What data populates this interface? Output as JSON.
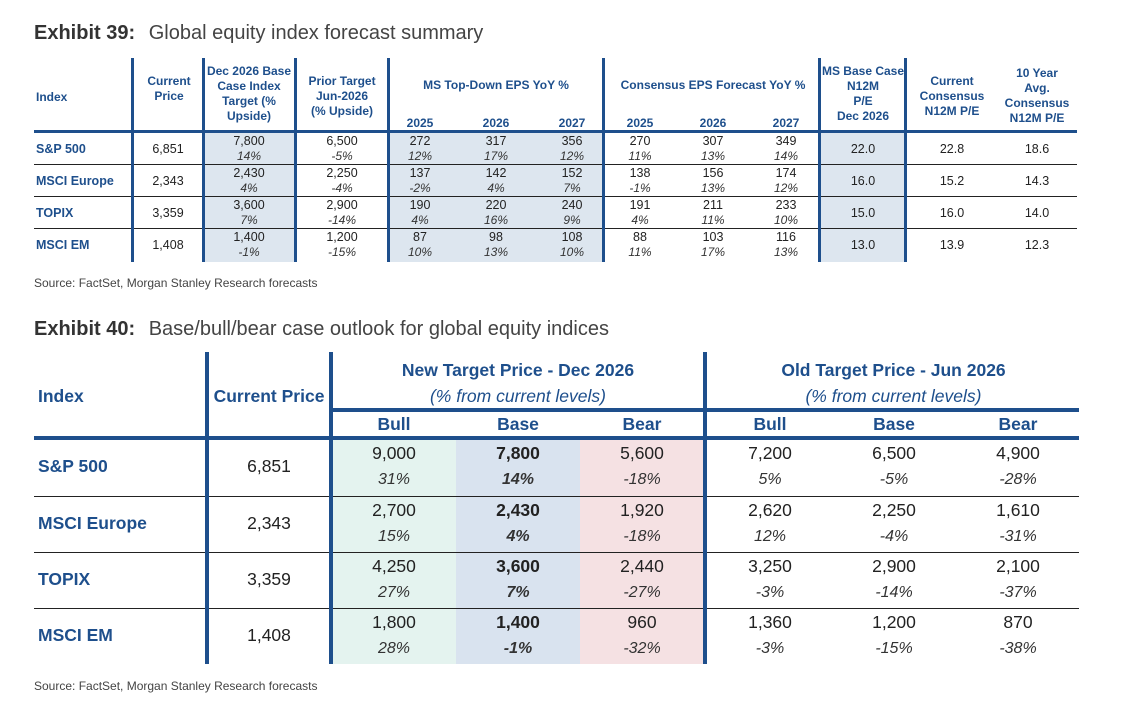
{
  "exhibit39": {
    "label": "Exhibit 39:",
    "title": "Global equity index forecast summary",
    "headers": {
      "index": "Index",
      "current_price": [
        "Current",
        "Price"
      ],
      "dec2026_target": [
        "Dec 2026 Base",
        "Case Index",
        "Target  (%",
        "Upside)"
      ],
      "prior_target": [
        "Prior Target",
        "Jun-2026",
        "(% Upside)"
      ],
      "ms_topdown": "MS Top-Down EPS YoY %",
      "consensus_eps": "Consensus EPS Forecast YoY %",
      "years": [
        "2025",
        "2026",
        "2027"
      ],
      "ms_base_pe": [
        "MS Base Case",
        "N12M",
        "P/E",
        "Dec 2026"
      ],
      "current_consensus_pe": [
        "Current",
        "Consensus",
        "N12M P/E"
      ],
      "ten_year_avg_pe": [
        "10 Year",
        "Avg.",
        "Consensus",
        "N12M P/E"
      ]
    },
    "rows": [
      {
        "index": "S&P 500",
        "current_price": "6,851",
        "target": "7,800",
        "target_pct": "14%",
        "prior": "6,500",
        "prior_pct": "-5%",
        "ms_eps": [
          "272",
          "317",
          "356"
        ],
        "ms_eps_pct": [
          "12%",
          "17%",
          "12%"
        ],
        "cons_eps": [
          "270",
          "307",
          "349"
        ],
        "cons_eps_pct": [
          "11%",
          "13%",
          "14%"
        ],
        "ms_pe": "22.0",
        "cur_pe": "22.8",
        "avg_pe": "18.6"
      },
      {
        "index": "MSCI Europe",
        "current_price": "2,343",
        "target": "2,430",
        "target_pct": "4%",
        "prior": "2,250",
        "prior_pct": "-4%",
        "ms_eps": [
          "137",
          "142",
          "152"
        ],
        "ms_eps_pct": [
          "-2%",
          "4%",
          "7%"
        ],
        "cons_eps": [
          "138",
          "156",
          "174"
        ],
        "cons_eps_pct": [
          "-1%",
          "13%",
          "12%"
        ],
        "ms_pe": "16.0",
        "cur_pe": "15.2",
        "avg_pe": "14.3"
      },
      {
        "index": "TOPIX",
        "current_price": "3,359",
        "target": "3,600",
        "target_pct": "7%",
        "prior": "2,900",
        "prior_pct": "-14%",
        "ms_eps": [
          "190",
          "220",
          "240"
        ],
        "ms_eps_pct": [
          "4%",
          "16%",
          "9%"
        ],
        "cons_eps": [
          "191",
          "211",
          "233"
        ],
        "cons_eps_pct": [
          "4%",
          "11%",
          "10%"
        ],
        "ms_pe": "15.0",
        "cur_pe": "16.0",
        "avg_pe": "14.0"
      },
      {
        "index": "MSCI EM",
        "current_price": "1,408",
        "target": "1,400",
        "target_pct": "-1%",
        "prior": "1,200",
        "prior_pct": "-15%",
        "ms_eps": [
          "87",
          "98",
          "108"
        ],
        "ms_eps_pct": [
          "10%",
          "13%",
          "10%"
        ],
        "cons_eps": [
          "88",
          "103",
          "116"
        ],
        "cons_eps_pct": [
          "11%",
          "17%",
          "13%"
        ],
        "ms_pe": "13.0",
        "cur_pe": "13.9",
        "avg_pe": "12.3"
      }
    ],
    "source": "Source: FactSet, Morgan Stanley Research forecasts"
  },
  "exhibit40": {
    "label": "Exhibit 40:",
    "title": "Base/bull/bear case outlook for global equity indices",
    "headers": {
      "index": "Index",
      "current_price": "Current Price",
      "new_target": "New Target Price - Dec 2026",
      "old_target": "Old Target Price - Jun 2026",
      "sub": "(% from current levels)",
      "cases": [
        "Bull",
        "Base",
        "Bear"
      ]
    },
    "rows": [
      {
        "index": "S&P 500",
        "current_price": "6,851",
        "new": [
          "9,000",
          "7,800",
          "5,600"
        ],
        "new_pct": [
          "31%",
          "14%",
          "-18%"
        ],
        "old": [
          "7,200",
          "6,500",
          "4,900"
        ],
        "old_pct": [
          "5%",
          "-5%",
          "-28%"
        ]
      },
      {
        "index": "MSCI Europe",
        "current_price": "2,343",
        "new": [
          "2,700",
          "2,430",
          "1,920"
        ],
        "new_pct": [
          "15%",
          "4%",
          "-18%"
        ],
        "old": [
          "2,620",
          "2,250",
          "1,610"
        ],
        "old_pct": [
          "12%",
          "-4%",
          "-31%"
        ]
      },
      {
        "index": "TOPIX",
        "current_price": "3,359",
        "new": [
          "4,250",
          "3,600",
          "2,440"
        ],
        "new_pct": [
          "27%",
          "7%",
          "-27%"
        ],
        "old": [
          "3,250",
          "2,900",
          "2,100"
        ],
        "old_pct": [
          "-3%",
          "-14%",
          "-37%"
        ]
      },
      {
        "index": "MSCI EM",
        "current_price": "1,408",
        "new": [
          "1,800",
          "1,400",
          "960"
        ],
        "new_pct": [
          "28%",
          "-1%",
          "-32%"
        ],
        "old": [
          "1,360",
          "1,200",
          "870"
        ],
        "old_pct": [
          "-3%",
          "-15%",
          "-38%"
        ]
      }
    ],
    "source": "Source: FactSet, Morgan Stanley Research forecasts"
  },
  "colors": {
    "accent": "#1e4f8c",
    "shade": "#dde6ef",
    "bull": "#e4f3ef",
    "base": "#d9e3ef",
    "bear": "#f5e1e3"
  }
}
